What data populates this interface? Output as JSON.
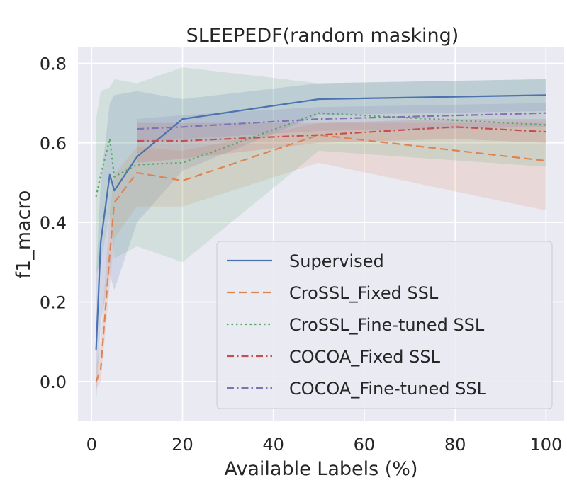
{
  "chart_data": {
    "type": "line",
    "title": "SLEEPEDF(random masking)",
    "xlabel": "Available Labels (%)",
    "ylabel": "f1_macro",
    "xlim": [
      -3,
      104
    ],
    "ylim": [
      -0.1,
      0.84
    ],
    "xticks": [
      0,
      20,
      40,
      60,
      80,
      100
    ],
    "xtick_labels": [
      "0",
      "20",
      "40",
      "60",
      "80",
      "100"
    ],
    "yticks": [
      0.0,
      0.2,
      0.4,
      0.6,
      0.8
    ],
    "ytick_labels": [
      "0.0",
      "0.2",
      "0.4",
      "0.6",
      "0.8"
    ],
    "grid": true,
    "background": "#eaeaf2",
    "legend_position": "lower-right",
    "series": [
      {
        "name": "Supervised",
        "color": "#4c72b0",
        "dash": "solid",
        "x": [
          1,
          2,
          4,
          5,
          10,
          20,
          50,
          100
        ],
        "y": [
          0.08,
          0.35,
          0.52,
          0.48,
          0.565,
          0.66,
          0.71,
          0.72
        ],
        "lower": [
          -0.06,
          0.15,
          0.27,
          0.23,
          0.4,
          0.53,
          0.67,
          0.68
        ],
        "upper": [
          0.26,
          0.5,
          0.7,
          0.72,
          0.73,
          0.71,
          0.75,
          0.76
        ]
      },
      {
        "name": "CroSSL_Fixed SSL",
        "color": "#dd8452",
        "dash": "dashed",
        "x": [
          1,
          2,
          4,
          5,
          10,
          20,
          50,
          100
        ],
        "y": [
          0.0,
          0.03,
          0.32,
          0.45,
          0.525,
          0.505,
          0.62,
          0.555
        ],
        "lower": [
          -0.02,
          0.0,
          0.24,
          0.36,
          0.44,
          0.44,
          0.55,
          0.43
        ],
        "upper": [
          0.04,
          0.1,
          0.43,
          0.52,
          0.59,
          0.58,
          0.65,
          0.65
        ]
      },
      {
        "name": "CroSSL_Fine-tuned SSL",
        "color": "#55a868",
        "dash": "dotted",
        "x": [
          1,
          2,
          4,
          5,
          10,
          20,
          50,
          100
        ],
        "y": [
          0.465,
          0.52,
          0.61,
          0.515,
          0.545,
          0.55,
          0.675,
          0.645
        ],
        "lower": [
          0.27,
          0.3,
          0.42,
          0.31,
          0.34,
          0.3,
          0.58,
          0.54
        ],
        "upper": [
          0.66,
          0.73,
          0.74,
          0.76,
          0.75,
          0.79,
          0.75,
          0.76
        ]
      },
      {
        "name": "COCOA_Fixed SSL",
        "color": "#c44e52",
        "dash": "dashdot",
        "x": [
          10,
          20,
          50,
          80,
          100
        ],
        "y": [
          0.605,
          0.605,
          0.62,
          0.64,
          0.628
        ],
        "lower": [
          0.55,
          0.56,
          0.6,
          0.61,
          0.6
        ],
        "upper": [
          0.65,
          0.65,
          0.65,
          0.66,
          0.66
        ]
      },
      {
        "name": "COCOA_Fine-tuned SSL",
        "color": "#8172b3",
        "dash": "dashdot",
        "x": [
          10,
          20,
          50,
          100
        ],
        "y": [
          0.635,
          0.64,
          0.66,
          0.675
        ],
        "lower": [
          0.6,
          0.61,
          0.63,
          0.64
        ],
        "upper": [
          0.66,
          0.67,
          0.69,
          0.7
        ]
      }
    ]
  }
}
